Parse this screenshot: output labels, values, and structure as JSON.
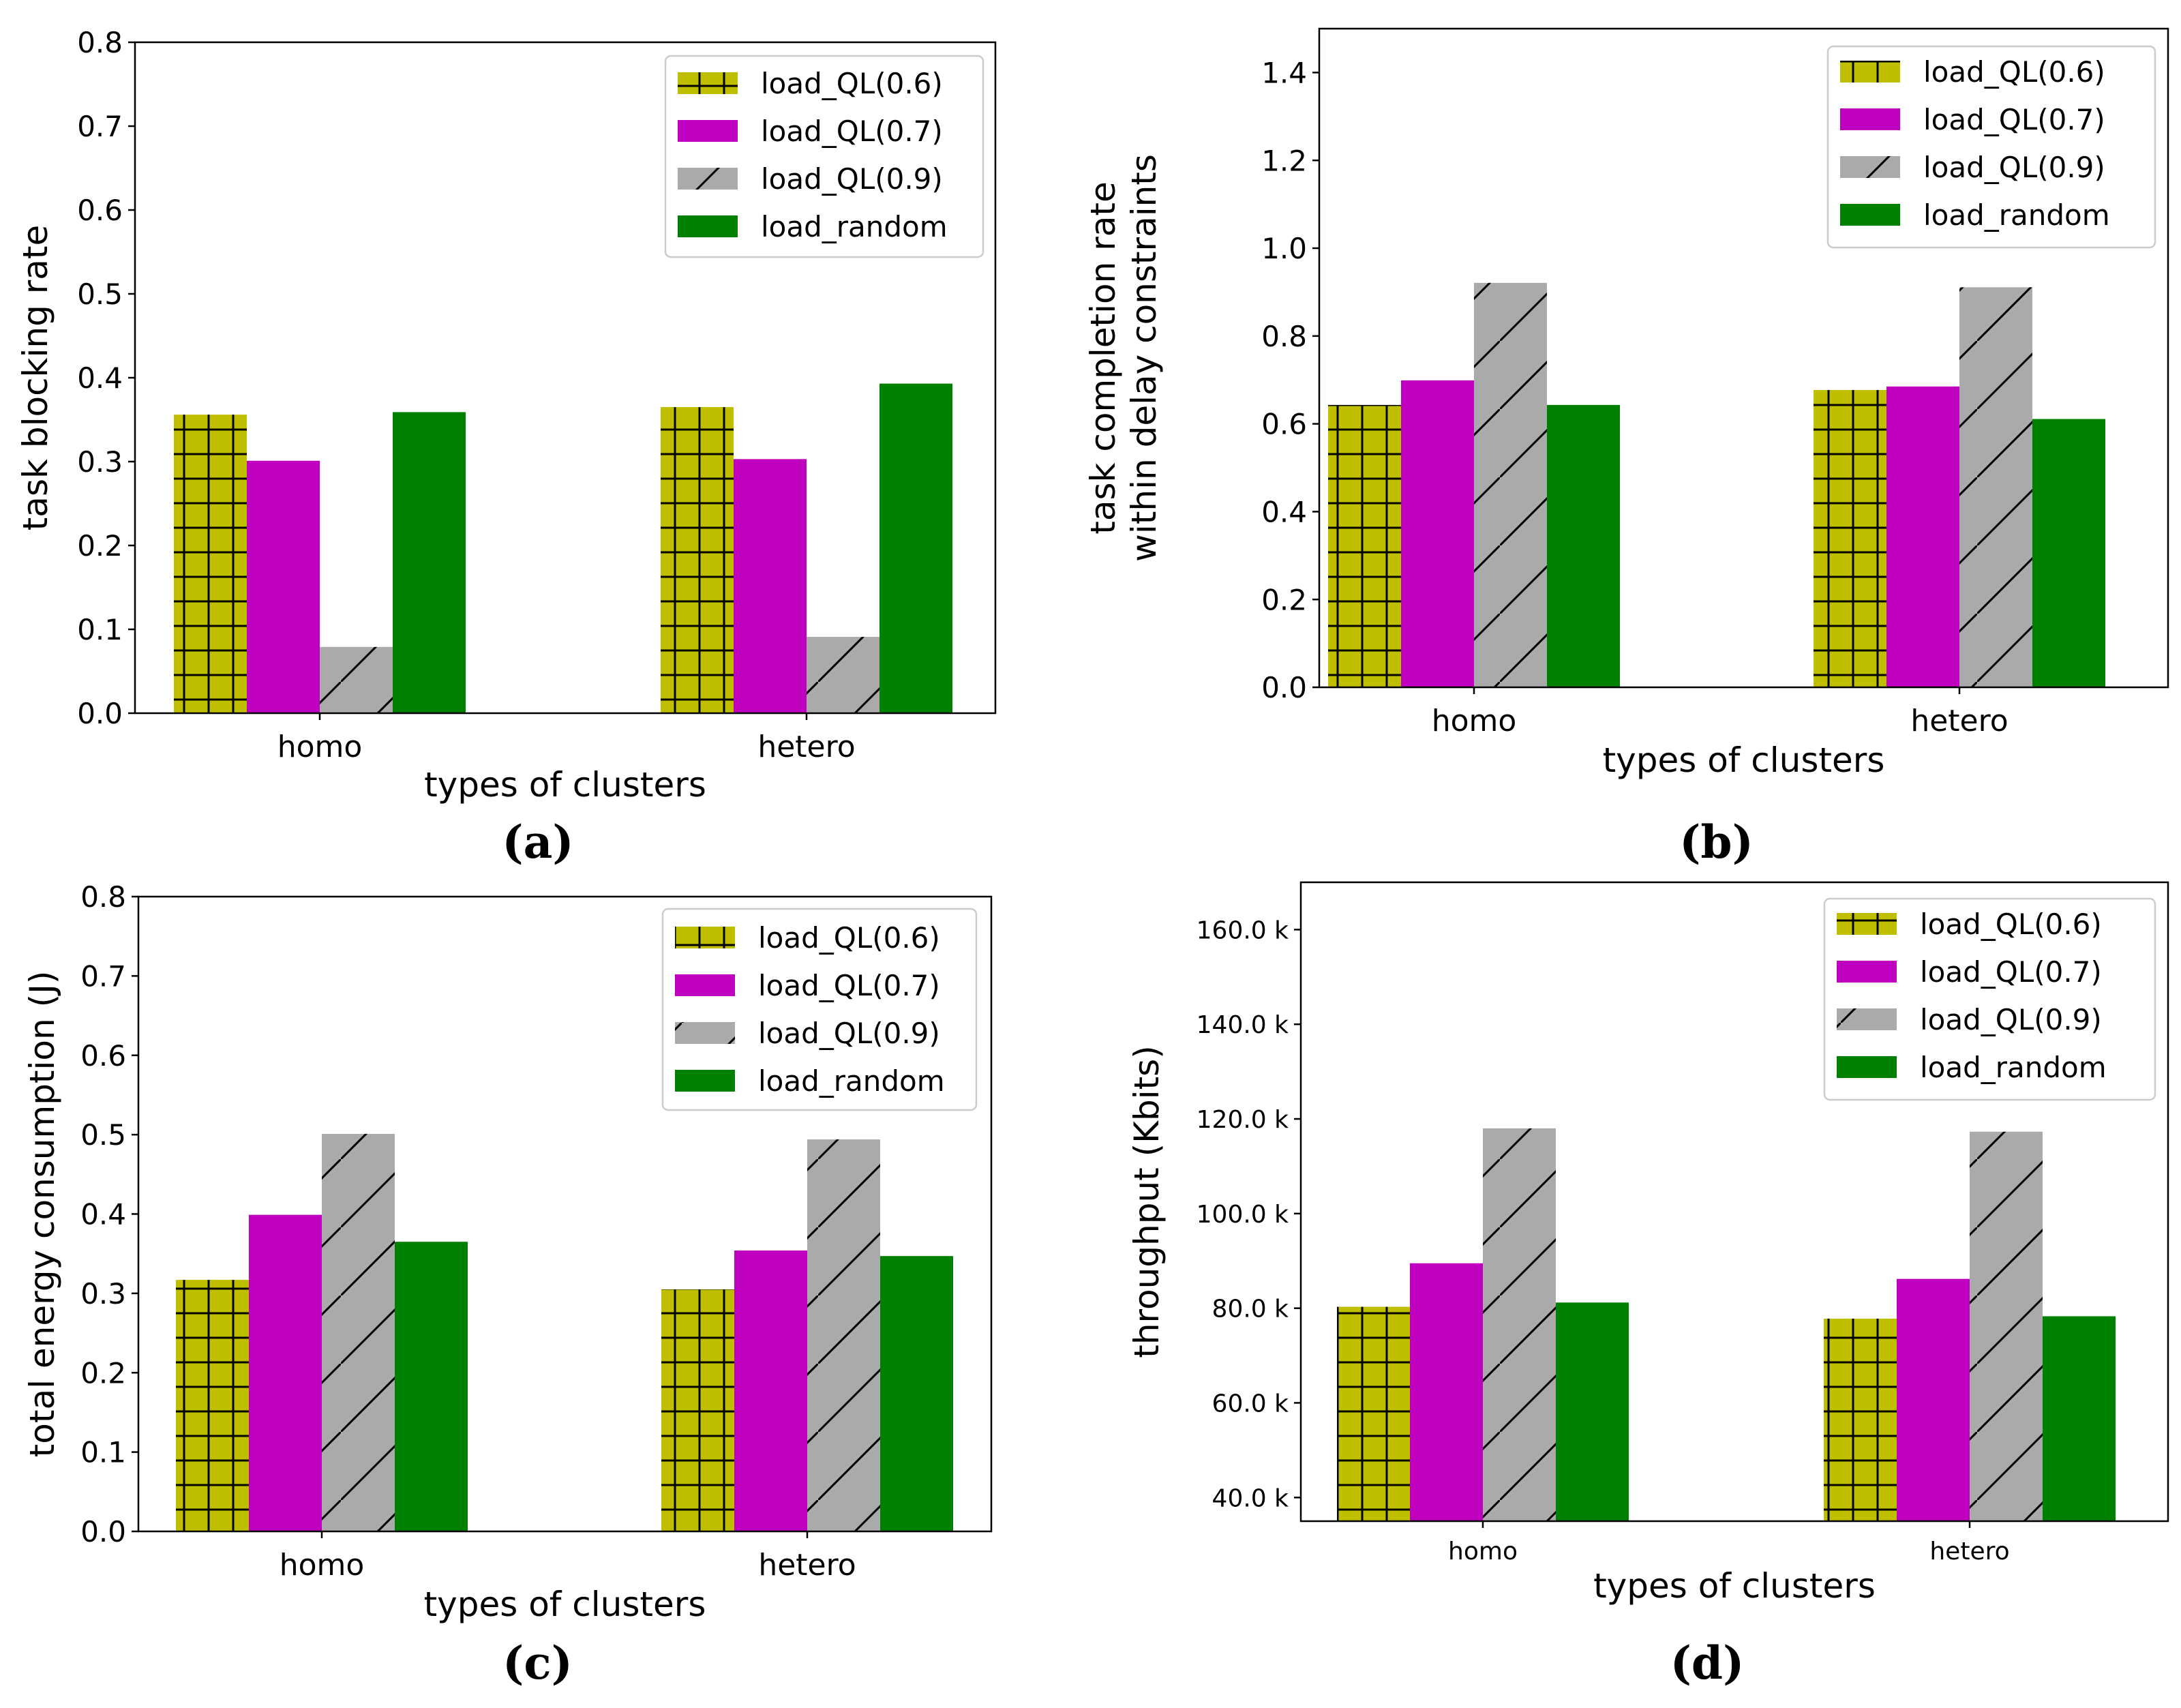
{
  "chart_data": [
    {
      "type": "bar",
      "panel_label": "(a)",
      "title": "",
      "xlabel": "types of clusters",
      "ylabel": "task blocking rate",
      "ylabel_lines": [
        "task blocking rate"
      ],
      "categories": [
        "homo",
        "hetero"
      ],
      "ylim": [
        0,
        0.8
      ],
      "yticks": [
        0.0,
        0.1,
        0.2,
        0.3,
        0.4,
        0.5,
        0.6,
        0.7,
        0.8
      ],
      "ytick_labels": [
        "0.0",
        "0.1",
        "0.2",
        "0.3",
        "0.4",
        "0.5",
        "0.6",
        "0.7",
        "0.8"
      ],
      "series": [
        {
          "name": "load_QL(0.6)",
          "values": [
            0.356,
            0.365
          ]
        },
        {
          "name": "load_QL(0.7)",
          "values": [
            0.301,
            0.303
          ]
        },
        {
          "name": "load_QL(0.9)",
          "values": [
            0.079,
            0.091
          ]
        },
        {
          "name": "load_random",
          "values": [
            0.359,
            0.393
          ]
        }
      ],
      "legend_position": "top-right",
      "grid": false
    },
    {
      "type": "bar",
      "panel_label": "(b)",
      "title": "",
      "xlabel": "types of clusters",
      "ylabel": "task completion rate within delay constraints",
      "ylabel_lines": [
        "task completion rate",
        "within delay constraints"
      ],
      "categories": [
        "homo",
        "hetero"
      ],
      "ylim": [
        0,
        1.5
      ],
      "yticks": [
        0.0,
        0.2,
        0.4,
        0.6,
        0.8,
        1.0,
        1.2,
        1.4
      ],
      "ytick_labels": [
        "0.0",
        "0.2",
        "0.4",
        "0.6",
        "0.8",
        "1.0",
        "1.2",
        "1.4"
      ],
      "series": [
        {
          "name": "load_QL(0.6)",
          "values": [
            0.643,
            0.677
          ]
        },
        {
          "name": "load_QL(0.7)",
          "values": [
            0.699,
            0.685
          ]
        },
        {
          "name": "load_QL(0.9)",
          "values": [
            0.921,
            0.911
          ]
        },
        {
          "name": "load_random",
          "values": [
            0.643,
            0.611
          ]
        }
      ],
      "legend_position": "top-right",
      "grid": false
    },
    {
      "type": "bar",
      "panel_label": "(c)",
      "title": "",
      "xlabel": "types of clusters",
      "ylabel": "total energy consumption (J)",
      "ylabel_lines": [
        "total energy consumption (J)"
      ],
      "categories": [
        "homo",
        "hetero"
      ],
      "ylim": [
        0,
        0.8
      ],
      "yticks": [
        0.0,
        0.1,
        0.2,
        0.3,
        0.4,
        0.5,
        0.6,
        0.7,
        0.8
      ],
      "ytick_labels": [
        "0.0",
        "0.1",
        "0.2",
        "0.3",
        "0.4",
        "0.5",
        "0.6",
        "0.7",
        "0.8"
      ],
      "series": [
        {
          "name": "load_QL(0.6)",
          "values": [
            0.317,
            0.305
          ]
        },
        {
          "name": "load_QL(0.7)",
          "values": [
            0.399,
            0.354
          ]
        },
        {
          "name": "load_QL(0.9)",
          "values": [
            0.501,
            0.494
          ]
        },
        {
          "name": "load_random",
          "values": [
            0.365,
            0.347
          ]
        }
      ],
      "legend_position": "top-right",
      "grid": false
    },
    {
      "type": "bar",
      "panel_label": "(d)",
      "title": "",
      "xlabel": "types of clusters",
      "ylabel": "throughput (Kbits)",
      "ylabel_lines": [
        "throughput (Kbits)"
      ],
      "categories": [
        "homo",
        "hetero"
      ],
      "ylim": [
        35000,
        170000
      ],
      "yticks": [
        40000,
        60000,
        80000,
        100000,
        120000,
        140000,
        160000
      ],
      "ytick_labels": [
        "40.0 k",
        "60.0 k",
        "80.0 k",
        "100.0 k",
        "120.0 k",
        "140.0 k",
        "160.0 k"
      ],
      "series": [
        {
          "name": "load_QL(0.6)",
          "values": [
            80300,
            77800
          ]
        },
        {
          "name": "load_QL(0.7)",
          "values": [
            89500,
            86200
          ]
        },
        {
          "name": "load_QL(0.9)",
          "values": [
            118000,
            117300
          ]
        },
        {
          "name": "load_random",
          "values": [
            81200,
            78300
          ]
        }
      ],
      "legend_position": "top-right",
      "grid": false
    }
  ],
  "colors": {
    "load_QL(0.6)": "#bfbf00",
    "load_QL(0.7)": "#bf00bf",
    "load_QL(0.9)": "#aaaaaa",
    "load_random": "#008000"
  }
}
